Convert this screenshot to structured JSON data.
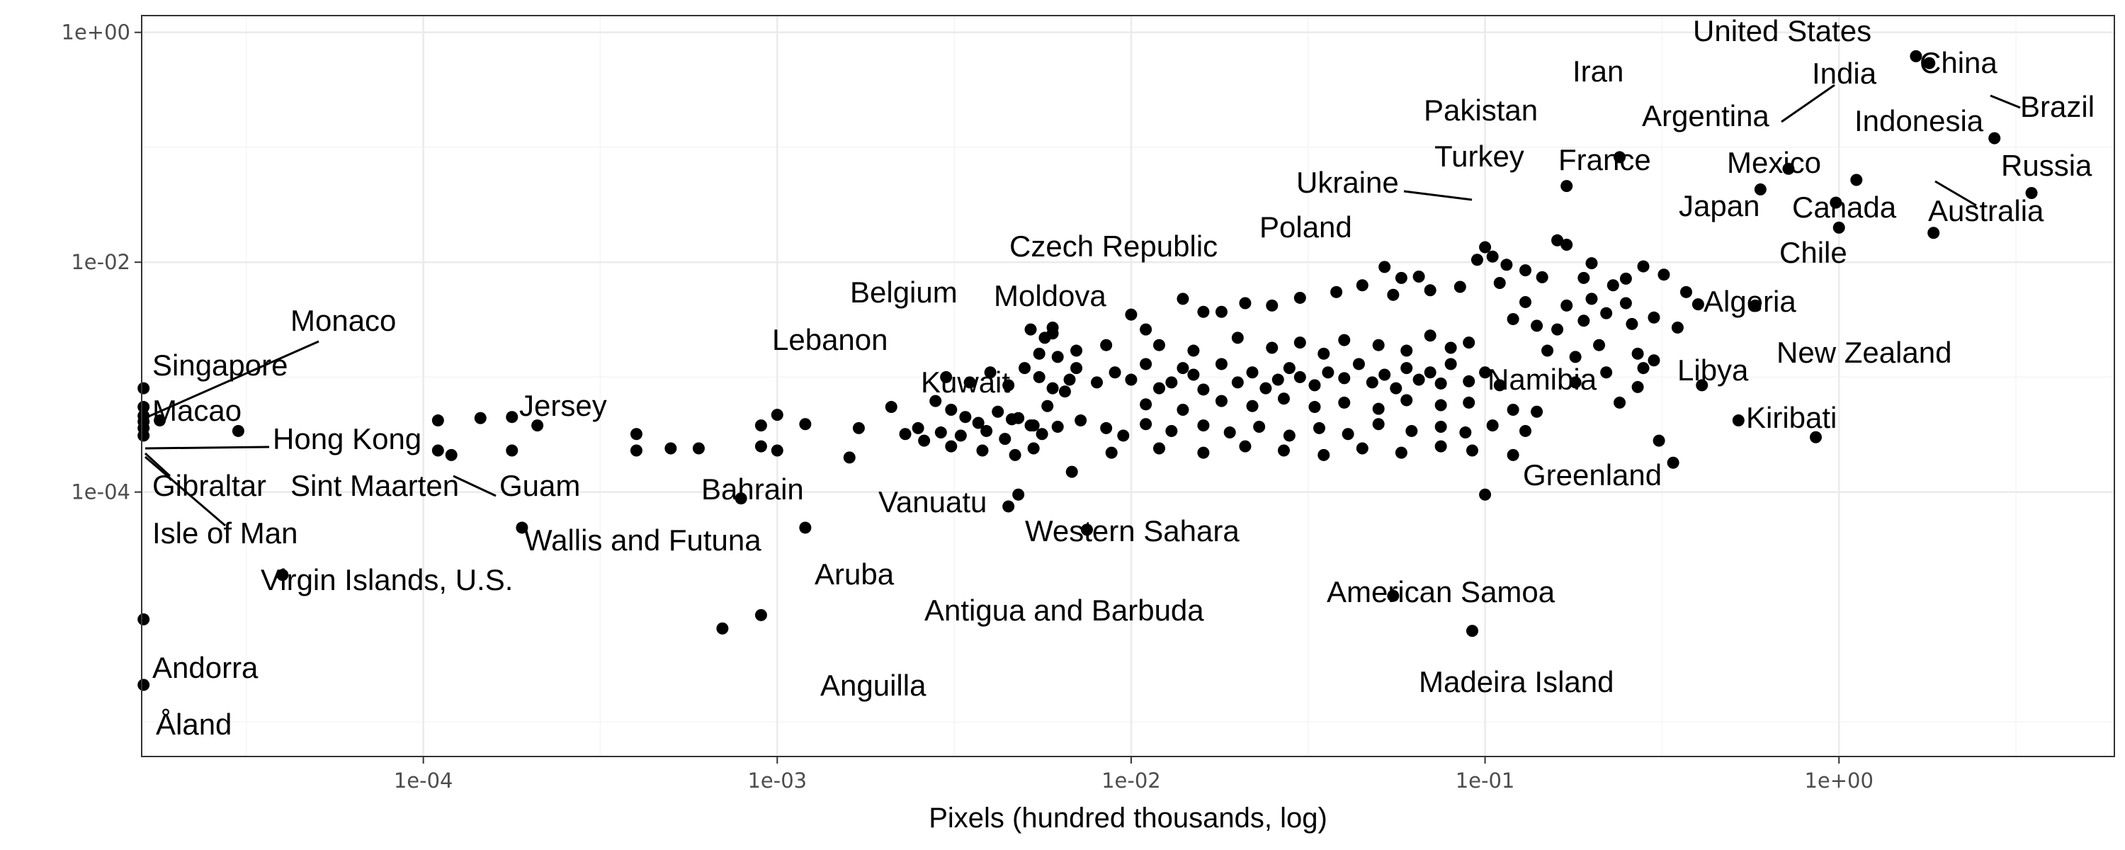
{
  "chart_data": {
    "type": "scatter",
    "title": "",
    "xlabel": "Pixels (hundred thousands, log)",
    "ylabel": "",
    "xscale": "log",
    "yscale": "log",
    "xlim": [
      1.6e-05,
      6.0
    ],
    "ylim": [
      5e-07,
      1.4
    ],
    "grid": true,
    "legend": "none",
    "x_ticks": [
      {
        "value": 0.0001,
        "label": "1e-04"
      },
      {
        "value": 0.001,
        "label": "1e-03"
      },
      {
        "value": 0.01,
        "label": "1e-02"
      },
      {
        "value": 0.1,
        "label": "1e-01"
      },
      {
        "value": 1,
        "label": "1e+00"
      }
    ],
    "y_ticks": [
      {
        "value": 0.0001,
        "label": "1e-04"
      },
      {
        "value": 0.01,
        "label": "1e-02"
      },
      {
        "value": 1,
        "label": "1e+00"
      }
    ],
    "labeled_points": [
      {
        "name": "United States",
        "x": 1.65,
        "y": 0.62
      },
      {
        "name": "China",
        "x": 1.8,
        "y": 0.54
      },
      {
        "name": "Brazil",
        "x": 2.75,
        "y": 0.12
      },
      {
        "name": "India",
        "x": 0.72,
        "y": 0.065
      },
      {
        "name": "Russia",
        "x": 3.5,
        "y": 0.04
      },
      {
        "name": "Iran",
        "x": 0.24,
        "y": 0.082
      },
      {
        "name": "Indonesia",
        "x": 1.12,
        "y": 0.052
      },
      {
        "name": "Pakistan",
        "x": 0.17,
        "y": 0.046
      },
      {
        "name": "Argentina",
        "x": 0.6,
        "y": 0.043
      },
      {
        "name": "Mexico",
        "x": 0.98,
        "y": 0.033
      },
      {
        "name": "Australia",
        "x": 1.85,
        "y": 0.018
      },
      {
        "name": "Turkey",
        "x": 0.1,
        "y": 0.0135
      },
      {
        "name": "Ukraine",
        "x": 0.16,
        "y": 0.0155
      },
      {
        "name": "France",
        "x": 0.17,
        "y": 0.0142
      },
      {
        "name": "Canada",
        "x": 1.0,
        "y": 0.02
      },
      {
        "name": "Poland",
        "x": 0.055,
        "y": 0.0052
      },
      {
        "name": "Japan",
        "x": 0.37,
        "y": 0.0055
      },
      {
        "name": "Chile",
        "x": 0.58,
        "y": 0.0042
      },
      {
        "name": "Czech Republic",
        "x": 0.0067,
        "y": 0.00095
      },
      {
        "name": "Algeria",
        "x": 0.41,
        "y": 0.00085
      },
      {
        "name": "Belgium",
        "x": 0.0046,
        "y": 0.00043
      },
      {
        "name": "Moldova",
        "x": 0.0053,
        "y": 0.00038
      },
      {
        "name": "Lebanon",
        "x": 0.0026,
        "y": 0.00028
      },
      {
        "name": "New Zealand",
        "x": 0.86,
        "y": 0.0003
      },
      {
        "name": "Libya",
        "x": 0.34,
        "y": 0.00018
      },
      {
        "name": "Kuwait",
        "x": 0.0048,
        "y": 9.5e-05
      },
      {
        "name": "Namibia",
        "x": 0.1,
        "y": 9.5e-05
      },
      {
        "name": "Kiribati",
        "x": 0.52,
        "y": 0.00042
      },
      {
        "name": "Greenland",
        "x": 0.12,
        "y": 0.00021
      },
      {
        "name": "Monaco",
        "x": 1.62e-05,
        "y": 0.00055
      },
      {
        "name": "Singapore",
        "x": 1.62e-05,
        "y": 0.0008
      },
      {
        "name": "Macao",
        "x": 1.62e-05,
        "y": 0.00046
      },
      {
        "name": "Hong Kong",
        "x": 1.62e-05,
        "y": 0.00041
      },
      {
        "name": "Gibraltar",
        "x": 1.62e-05,
        "y": 0.00036
      },
      {
        "name": "Isle of Man",
        "x": 1.62e-05,
        "y": 0.00031
      },
      {
        "name": "Jersey",
        "x": 0.00021,
        "y": 0.00038
      },
      {
        "name": "Guam",
        "x": 0.00012,
        "y": 0.00021
      },
      {
        "name": "Sint Maarten",
        "x": 0.00011,
        "y": 0.00023
      },
      {
        "name": "Bahrain",
        "x": 0.00079,
        "y": 8.8e-05
      },
      {
        "name": "Vanuatu",
        "x": 0.0045,
        "y": 7.5e-05
      },
      {
        "name": "Wallis and Futuna",
        "x": 0.00019,
        "y": 4.9e-05
      },
      {
        "name": "Aruba",
        "x": 0.0012,
        "y": 4.9e-05
      },
      {
        "name": "Western Sahara",
        "x": 0.0075,
        "y": 4.7e-05
      },
      {
        "name": "Virgin Islands, U.S.",
        "x": 4e-05,
        "y": 1.9e-05
      },
      {
        "name": "American Samoa",
        "x": 0.055,
        "y": 1.25e-05
      },
      {
        "name": "Antigua and Barbuda",
        "x": 0.0009,
        "y": 8.5e-06
      },
      {
        "name": "Anguilla",
        "x": 0.0007,
        "y": 6.5e-06
      },
      {
        "name": "Madeira Island",
        "x": 0.092,
        "y": 6.2e-06
      },
      {
        "name": "Andorra",
        "x": 1.62e-05,
        "y": 7.8e-06
      },
      {
        "name": "Åland",
        "x": 1.62e-05,
        "y": 2.1e-06
      }
    ],
    "unlabeled_points": [
      {
        "x": 0.003,
        "y": 0.001
      },
      {
        "x": 0.0035,
        "y": 0.0009
      },
      {
        "x": 0.004,
        "y": 0.0011
      },
      {
        "x": 0.0045,
        "y": 0.00085
      },
      {
        "x": 0.005,
        "y": 0.0012
      },
      {
        "x": 0.0055,
        "y": 0.001
      },
      {
        "x": 0.006,
        "y": 0.0008
      },
      {
        "x": 0.0065,
        "y": 0.00075
      },
      {
        "x": 0.007,
        "y": 0.0012
      },
      {
        "x": 0.008,
        "y": 0.0009
      },
      {
        "x": 0.009,
        "y": 0.0011
      },
      {
        "x": 0.01,
        "y": 0.00095
      },
      {
        "x": 0.011,
        "y": 0.0013
      },
      {
        "x": 0.012,
        "y": 0.0008
      },
      {
        "x": 0.013,
        "y": 0.0009
      },
      {
        "x": 0.014,
        "y": 0.0012
      },
      {
        "x": 0.015,
        "y": 0.00105
      },
      {
        "x": 0.016,
        "y": 0.00078
      },
      {
        "x": 0.018,
        "y": 0.0013
      },
      {
        "x": 0.02,
        "y": 0.0009
      },
      {
        "x": 0.022,
        "y": 0.0011
      },
      {
        "x": 0.024,
        "y": 0.0008
      },
      {
        "x": 0.026,
        "y": 0.00095
      },
      {
        "x": 0.028,
        "y": 0.0012
      },
      {
        "x": 0.03,
        "y": 0.001
      },
      {
        "x": 0.033,
        "y": 0.00085
      },
      {
        "x": 0.036,
        "y": 0.0011
      },
      {
        "x": 0.04,
        "y": 0.00098
      },
      {
        "x": 0.044,
        "y": 0.0013
      },
      {
        "x": 0.048,
        "y": 0.0009
      },
      {
        "x": 0.052,
        "y": 0.00105
      },
      {
        "x": 0.056,
        "y": 0.0008
      },
      {
        "x": 0.06,
        "y": 0.0012
      },
      {
        "x": 0.065,
        "y": 0.00095
      },
      {
        "x": 0.07,
        "y": 0.0011
      },
      {
        "x": 0.075,
        "y": 0.00088
      },
      {
        "x": 0.08,
        "y": 0.0013
      },
      {
        "x": 0.09,
        "y": 0.00092
      },
      {
        "x": 0.1,
        "y": 0.0011
      },
      {
        "x": 0.11,
        "y": 0.00085
      },
      {
        "x": 0.012,
        "y": 0.0019
      },
      {
        "x": 0.015,
        "y": 0.0017
      },
      {
        "x": 0.02,
        "y": 0.0022
      },
      {
        "x": 0.025,
        "y": 0.0018
      },
      {
        "x": 0.03,
        "y": 0.002
      },
      {
        "x": 0.035,
        "y": 0.0016
      },
      {
        "x": 0.04,
        "y": 0.0021
      },
      {
        "x": 0.05,
        "y": 0.0019
      },
      {
        "x": 0.06,
        "y": 0.0017
      },
      {
        "x": 0.07,
        "y": 0.0023
      },
      {
        "x": 0.08,
        "y": 0.0018
      },
      {
        "x": 0.09,
        "y": 0.002
      },
      {
        "x": 0.011,
        "y": 0.00058
      },
      {
        "x": 0.014,
        "y": 0.00052
      },
      {
        "x": 0.018,
        "y": 0.00062
      },
      {
        "x": 0.022,
        "y": 0.00056
      },
      {
        "x": 0.027,
        "y": 0.00065
      },
      {
        "x": 0.033,
        "y": 0.00055
      },
      {
        "x": 0.04,
        "y": 0.0006
      },
      {
        "x": 0.05,
        "y": 0.00053
      },
      {
        "x": 0.06,
        "y": 0.00063
      },
      {
        "x": 0.075,
        "y": 0.00057
      },
      {
        "x": 0.09,
        "y": 0.0006
      },
      {
        "x": 0.12,
        "y": 0.00052
      },
      {
        "x": 0.0028,
        "y": 0.00062
      },
      {
        "x": 0.0031,
        "y": 0.00052
      },
      {
        "x": 0.0034,
        "y": 0.00045
      },
      {
        "x": 0.0037,
        "y": 0.0004
      },
      {
        "x": 0.0042,
        "y": 0.0005
      },
      {
        "x": 0.0048,
        "y": 0.00044
      },
      {
        "x": 0.0052,
        "y": 0.00038
      },
      {
        "x": 0.0058,
        "y": 0.00056
      },
      {
        "x": 0.0025,
        "y": 0.00036
      },
      {
        "x": 0.0029,
        "y": 0.00033
      },
      {
        "x": 0.0033,
        "y": 0.00031
      },
      {
        "x": 0.0039,
        "y": 0.00034
      },
      {
        "x": 0.0044,
        "y": 0.00029
      },
      {
        "x": 0.0056,
        "y": 0.00032
      },
      {
        "x": 0.0062,
        "y": 0.00037
      },
      {
        "x": 0.0072,
        "y": 0.00042
      },
      {
        "x": 0.0085,
        "y": 0.00036
      },
      {
        "x": 0.0095,
        "y": 0.00031
      },
      {
        "x": 0.011,
        "y": 0.00039
      },
      {
        "x": 0.013,
        "y": 0.00034
      },
      {
        "x": 0.016,
        "y": 0.00038
      },
      {
        "x": 0.019,
        "y": 0.00033
      },
      {
        "x": 0.023,
        "y": 0.00037
      },
      {
        "x": 0.028,
        "y": 0.00031
      },
      {
        "x": 0.034,
        "y": 0.00036
      },
      {
        "x": 0.041,
        "y": 0.00032
      },
      {
        "x": 0.05,
        "y": 0.00039
      },
      {
        "x": 0.062,
        "y": 0.00034
      },
      {
        "x": 0.075,
        "y": 0.00037
      },
      {
        "x": 0.088,
        "y": 0.00033
      },
      {
        "x": 0.105,
        "y": 0.00038
      },
      {
        "x": 0.13,
        "y": 0.00034
      },
      {
        "x": 0.012,
        "y": 0.00024
      },
      {
        "x": 0.016,
        "y": 0.00022
      },
      {
        "x": 0.021,
        "y": 0.00025
      },
      {
        "x": 0.027,
        "y": 0.00023
      },
      {
        "x": 0.035,
        "y": 0.00021
      },
      {
        "x": 0.045,
        "y": 0.00024
      },
      {
        "x": 0.058,
        "y": 0.00022
      },
      {
        "x": 0.075,
        "y": 0.00025
      },
      {
        "x": 0.092,
        "y": 0.00023
      },
      {
        "x": 0.0031,
        "y": 0.00025
      },
      {
        "x": 0.0038,
        "y": 0.00023
      },
      {
        "x": 0.0047,
        "y": 0.00021
      },
      {
        "x": 0.0053,
        "y": 0.00024
      },
      {
        "x": 0.0068,
        "y": 0.00015
      },
      {
        "x": 0.0088,
        "y": 0.00022
      },
      {
        "x": 0.0016,
        "y": 0.0002
      },
      {
        "x": 0.0017,
        "y": 0.00036
      },
      {
        "x": 0.0021,
        "y": 0.00055
      },
      {
        "x": 0.0023,
        "y": 0.00032
      },
      {
        "x": 0.0012,
        "y": 0.00039
      },
      {
        "x": 0.0009,
        "y": 0.00038
      },
      {
        "x": 0.0009,
        "y": 0.00025
      },
      {
        "x": 0.001,
        "y": 0.00047
      },
      {
        "x": 0.001,
        "y": 0.00023
      },
      {
        "x": 0.0005,
        "y": 0.00024
      },
      {
        "x": 0.0004,
        "y": 0.00032
      },
      {
        "x": 0.0004,
        "y": 0.00023
      },
      {
        "x": 0.0006,
        "y": 0.00024
      },
      {
        "x": 1.8e-05,
        "y": 0.00042
      },
      {
        "x": 3e-05,
        "y": 0.00034
      },
      {
        "x": 0.000145,
        "y": 0.00044
      },
      {
        "x": 0.000178,
        "y": 0.00045
      },
      {
        "x": 0.000178,
        "y": 0.00023
      },
      {
        "x": 0.00011,
        "y": 0.00042
      },
      {
        "x": 0.12,
        "y": 0.0032
      },
      {
        "x": 0.14,
        "y": 0.0028
      },
      {
        "x": 0.16,
        "y": 0.0026
      },
      {
        "x": 0.19,
        "y": 0.0031
      },
      {
        "x": 0.22,
        "y": 0.0036
      },
      {
        "x": 0.26,
        "y": 0.0029
      },
      {
        "x": 0.3,
        "y": 0.0033
      },
      {
        "x": 0.35,
        "y": 0.0027
      },
      {
        "x": 0.13,
        "y": 0.0045
      },
      {
        "x": 0.17,
        "y": 0.0042
      },
      {
        "x": 0.2,
        "y": 0.0048
      },
      {
        "x": 0.25,
        "y": 0.0044
      },
      {
        "x": 0.15,
        "y": 0.0017
      },
      {
        "x": 0.18,
        "y": 0.0015
      },
      {
        "x": 0.21,
        "y": 0.0019
      },
      {
        "x": 0.27,
        "y": 0.0016
      },
      {
        "x": 0.3,
        "y": 0.0014
      },
      {
        "x": 0.18,
        "y": 0.0009
      },
      {
        "x": 0.22,
        "y": 0.0011
      },
      {
        "x": 0.28,
        "y": 0.0012
      },
      {
        "x": 0.14,
        "y": 0.0005
      },
      {
        "x": 0.24,
        "y": 0.0006
      },
      {
        "x": 0.31,
        "y": 0.00028
      },
      {
        "x": 0.27,
        "y": 0.00082
      },
      {
        "x": 0.045,
        "y": 0.0063
      },
      {
        "x": 0.058,
        "y": 0.0073
      },
      {
        "x": 0.07,
        "y": 0.0057
      },
      {
        "x": 0.085,
        "y": 0.0061
      },
      {
        "x": 0.03,
        "y": 0.0049
      },
      {
        "x": 0.038,
        "y": 0.0055
      },
      {
        "x": 0.052,
        "y": 0.0091
      },
      {
        "x": 0.065,
        "y": 0.0075
      },
      {
        "x": 0.11,
        "y": 0.0066
      },
      {
        "x": 0.115,
        "y": 0.0095
      },
      {
        "x": 0.13,
        "y": 0.0085
      },
      {
        "x": 0.145,
        "y": 0.0074
      },
      {
        "x": 0.2,
        "y": 0.0098
      },
      {
        "x": 0.25,
        "y": 0.0072
      },
      {
        "x": 0.28,
        "y": 0.0092
      },
      {
        "x": 0.32,
        "y": 0.0078
      },
      {
        "x": 0.4,
        "y": 0.0043
      },
      {
        "x": 0.23,
        "y": 0.0063
      },
      {
        "x": 0.19,
        "y": 0.0073
      },
      {
        "x": 0.105,
        "y": 0.0112
      },
      {
        "x": 0.095,
        "y": 0.0105
      },
      {
        "x": 0.025,
        "y": 0.0042
      },
      {
        "x": 0.021,
        "y": 0.0044
      },
      {
        "x": 0.018,
        "y": 0.0037
      },
      {
        "x": 0.014,
        "y": 0.0048
      },
      {
        "x": 0.016,
        "y": 0.0037
      },
      {
        "x": 0.01,
        "y": 0.0035
      },
      {
        "x": 0.011,
        "y": 0.0026
      },
      {
        "x": 0.0085,
        "y": 0.0019
      },
      {
        "x": 0.007,
        "y": 0.0017
      },
      {
        "x": 0.006,
        "y": 0.0027
      },
      {
        "x": 0.0057,
        "y": 0.0022
      },
      {
        "x": 0.0055,
        "y": 0.0016
      },
      {
        "x": 0.0062,
        "y": 0.0015
      },
      {
        "x": 0.006,
        "y": 0.0024
      },
      {
        "x": 0.0052,
        "y": 0.0026
      }
    ]
  }
}
